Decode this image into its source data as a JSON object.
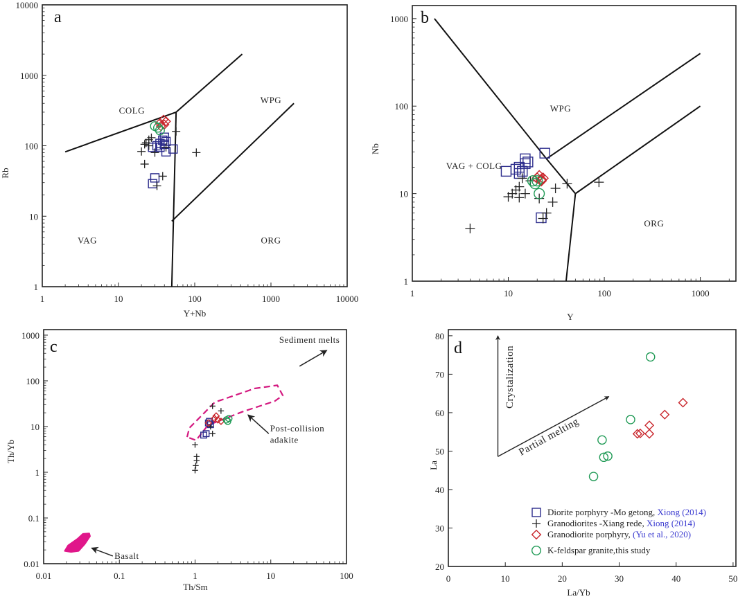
{
  "colors": {
    "square": "#2c2c8c",
    "cross": "#222222",
    "diamond": "#c9262c",
    "circle": "#1f9a55",
    "envelope": "#d3177f",
    "basalt": "#e0168a",
    "citation": "#3b3bd0"
  },
  "chart_data": [
    {
      "panel": "a",
      "type": "scatter",
      "xscale": "log",
      "yscale": "log",
      "xlabel": "Y+Nb",
      "ylabel": "Rb",
      "xlim": [
        1,
        10000
      ],
      "ylim": [
        1,
        10000
      ],
      "x_ticks": [
        "1",
        "10",
        "100",
        "1000",
        "10000"
      ],
      "y_ticks": [
        "1",
        "10",
        "100",
        "1000",
        "10000"
      ],
      "field_lines": [
        [
          [
            2,
            82
          ],
          [
            57,
            300
          ],
          [
            420,
            2000
          ]
        ],
        [
          [
            57,
            300
          ],
          [
            50,
            1
          ]
        ],
        [
          [
            50,
            8.5
          ],
          [
            2000,
            400
          ]
        ]
      ],
      "field_labels": [
        {
          "text": "COLG",
          "x": 15,
          "y": 320
        },
        {
          "text": "WPG",
          "x": 1000,
          "y": 450
        },
        {
          "text": "VAG",
          "x": 3.9,
          "y": 4.6
        },
        {
          "text": "ORG",
          "x": 1000,
          "y": 4.6
        }
      ],
      "series": [
        {
          "name": "Diorite porphyry",
          "marker": "square",
          "points": [
            [
              28,
              29
            ],
            [
              30,
              35
            ],
            [
              28,
              95
            ],
            [
              32,
              100
            ],
            [
              35,
              108
            ],
            [
              38,
              120
            ],
            [
              40,
              132
            ],
            [
              42,
              115
            ],
            [
              42,
              82
            ],
            [
              52,
              90
            ],
            [
              35,
              95
            ],
            [
              40,
              105
            ]
          ]
        },
        {
          "name": "Granodiorites",
          "marker": "cross",
          "points": [
            [
              20,
              83
            ],
            [
              22,
              55
            ],
            [
              23,
              110
            ],
            [
              25,
              122
            ],
            [
              27,
              130
            ],
            [
              25,
              100
            ],
            [
              30,
              80
            ],
            [
              32,
              27
            ],
            [
              38,
              37
            ],
            [
              105,
              80
            ],
            [
              57,
              160
            ],
            [
              42,
              95
            ],
            [
              22,
              105
            ]
          ]
        },
        {
          "name": "Granodiorite porphyry",
          "marker": "diamond",
          "points": [
            [
              35,
              210
            ],
            [
              39,
              235
            ],
            [
              40,
              200
            ],
            [
              42,
              222
            ],
            [
              36,
              190
            ]
          ]
        },
        {
          "name": "K-feldspar granite",
          "marker": "circle",
          "points": [
            [
              30,
              190
            ],
            [
              33,
              180
            ],
            [
              35,
              165
            ]
          ]
        }
      ]
    },
    {
      "panel": "b",
      "type": "scatter",
      "xscale": "log",
      "yscale": "log",
      "xlabel": "Y",
      "ylabel": "Nb",
      "xlim": [
        1,
        2350
      ],
      "ylim": [
        1,
        1410
      ],
      "x_ticks": [
        "1",
        "10",
        "100",
        "1000"
      ],
      "y_ticks": [
        "1",
        "10",
        "100",
        "1000"
      ],
      "field_lines": [
        [
          [
            1.7,
            1000
          ],
          [
            25,
            25
          ],
          [
            50,
            10
          ]
        ],
        [
          [
            25,
            25
          ],
          [
            1000,
            400
          ]
        ],
        [
          [
            50,
            10
          ],
          [
            1000,
            100
          ]
        ],
        [
          [
            50,
            10
          ],
          [
            40,
            1
          ]
        ]
      ],
      "field_labels": [
        {
          "text": "WPG",
          "x": 35,
          "y": 95
        },
        {
          "text": "VAG + COLG",
          "x": 4.4,
          "y": 21
        },
        {
          "text": "ORG",
          "x": 330,
          "y": 4.6
        }
      ],
      "series": [
        {
          "name": "Diorite porphyry",
          "marker": "square",
          "points": [
            [
              9.5,
              18
            ],
            [
              12,
              19
            ],
            [
              13,
              17
            ],
            [
              13,
              20
            ],
            [
              15,
              25
            ],
            [
              16,
              23
            ],
            [
              15,
              22
            ],
            [
              22,
              5.3
            ],
            [
              24,
              29
            ],
            [
              14,
              18
            ]
          ]
        },
        {
          "name": "Granodiorites",
          "marker": "cross",
          "points": [
            [
              4,
              4
            ],
            [
              10,
              9.2
            ],
            [
              11,
              10
            ],
            [
              12,
              11
            ],
            [
              13,
              9
            ],
            [
              13,
              12
            ],
            [
              15,
              10
            ],
            [
              14,
              15
            ],
            [
              21,
              8.8
            ],
            [
              17,
              14
            ],
            [
              23,
              5.2
            ],
            [
              25,
              6
            ],
            [
              31,
              11.5
            ],
            [
              29,
              8
            ],
            [
              41,
              13
            ],
            [
              88,
              13.5
            ]
          ]
        },
        {
          "name": "Granodiorite porphyry",
          "marker": "diamond",
          "points": [
            [
              20,
              15
            ],
            [
              21,
              16
            ],
            [
              22,
              14.5
            ],
            [
              23,
              15
            ],
            [
              22,
              14
            ]
          ]
        },
        {
          "name": "K-feldspar granite",
          "marker": "circle",
          "points": [
            [
              18,
              14
            ],
            [
              19,
              13
            ],
            [
              21,
              10
            ],
            [
              20,
              14
            ]
          ]
        }
      ]
    },
    {
      "panel": "c",
      "type": "scatter",
      "xscale": "log",
      "yscale": "log",
      "xlabel": "Th/Sm",
      "ylabel": "Th/Yb",
      "xlim": [
        0.01,
        100
      ],
      "ylim": [
        0.01,
        1320
      ],
      "x_ticks": [
        "0.01",
        "0.1",
        "1",
        "10",
        "100"
      ],
      "y_ticks": [
        "0.01",
        "0.1",
        "1",
        "10",
        "100",
        "1000"
      ],
      "envelope_name": "Post-collision adakite",
      "envelope": [
        [
          0.785,
          5.9
        ],
        [
          0.84,
          9.3
        ],
        [
          1.82,
          34
        ],
        [
          6.1,
          68
        ],
        [
          12.2,
          80
        ],
        [
          14.4,
          48
        ],
        [
          11.3,
          36
        ],
        [
          4.2,
          21
        ],
        [
          1.48,
          10.7
        ],
        [
          1.03,
          5
        ]
      ],
      "basalt_field": [
        [
          0.019,
          0.019
        ],
        [
          0.021,
          0.025
        ],
        [
          0.028,
          0.035
        ],
        [
          0.033,
          0.045
        ],
        [
          0.04,
          0.046
        ],
        [
          0.041,
          0.04
        ],
        [
          0.035,
          0.027
        ],
        [
          0.029,
          0.019
        ],
        [
          0.023,
          0.018
        ]
      ],
      "annotations": [
        {
          "text": "Sediment melts",
          "x": 12.9,
          "y": 680
        },
        {
          "text": "Post-collision",
          "x": 9.8,
          "y": 7.8
        },
        {
          "text": "adakite",
          "x": 9.8,
          "y": 4.4
        },
        {
          "text": "Basalt",
          "x": 0.086,
          "y": 0.0128
        }
      ],
      "arrows": [
        {
          "from": [
            24,
            209
          ],
          "to": [
            55,
            465
          ]
        },
        {
          "from": [
            9.4,
            7
          ],
          "to": [
            5,
            18
          ]
        },
        {
          "from": [
            0.082,
            0.0147
          ],
          "to": [
            0.043,
            0.022
          ]
        }
      ],
      "series": [
        {
          "name": "Diorite porphyry",
          "marker": "square",
          "points": [
            [
              1.3,
              6.5
            ],
            [
              1.4,
              7
            ],
            [
              1.5,
              12
            ],
            [
              1.6,
              11
            ],
            [
              1.55,
              13
            ]
          ]
        },
        {
          "name": "Granodiorites",
          "marker": "cross",
          "points": [
            [
              1,
              1.1
            ],
            [
              1.02,
              1.4
            ],
            [
              1.05,
              1.8
            ],
            [
              1.05,
              2.2
            ],
            [
              1,
              4
            ],
            [
              1.7,
              28
            ],
            [
              2.2,
              22
            ],
            [
              1.6,
              10
            ],
            [
              1.7,
              7
            ]
          ]
        },
        {
          "name": "Granodiorite porphyry",
          "marker": "diamond",
          "points": [
            [
              1.5,
              12
            ],
            [
              1.8,
              15
            ],
            [
              2,
              14
            ],
            [
              2.2,
              13
            ],
            [
              1.9,
              17
            ]
          ]
        },
        {
          "name": "K-feldspar granite",
          "marker": "circle",
          "points": [
            [
              2.6,
              14
            ],
            [
              2.8,
              15
            ],
            [
              2.7,
              13
            ]
          ]
        }
      ]
    },
    {
      "panel": "d",
      "type": "scatter",
      "xscale": "linear",
      "yscale": "linear",
      "xlabel": "La/Yb",
      "ylabel": "La",
      "xlim": [
        0,
        50.5
      ],
      "ylim": [
        20,
        81.6
      ],
      "x_ticks": [
        "0",
        "10",
        "20",
        "30",
        "40",
        "50"
      ],
      "y_ticks": [
        "20",
        "30",
        "40",
        "50",
        "60",
        "70",
        "80"
      ],
      "annotations": [
        {
          "text": "Crystalization"
        },
        {
          "text": "Partial melting"
        }
      ],
      "arrows": [
        {
          "from": [
            8.7,
            48.6
          ],
          "to": [
            8.7,
            80
          ]
        },
        {
          "from": [
            8.7,
            48.6
          ],
          "to": [
            28.2,
            64.2
          ]
        }
      ],
      "legend": [
        {
          "marker": "square",
          "label": "Diorite porphyry -Mo getong, ",
          "citation": "Xiong (2014)"
        },
        {
          "marker": "cross",
          "label": "Granodiorites -Xiang rede, ",
          "citation": "Xiong (2014)"
        },
        {
          "marker": "diamond",
          "label": "Granodiorite porphyry, ",
          "citation": "(Yu et al., 2020)"
        },
        {
          "marker": "circle",
          "label": "K-feldspar granite,this study",
          "citation": ""
        }
      ],
      "legend_position": "bottom-right",
      "series": [
        {
          "name": "Granodiorite porphyry",
          "marker": "diamond",
          "points": [
            [
              41.2,
              62.6
            ],
            [
              38,
              59.5
            ],
            [
              35.3,
              56.7
            ],
            [
              33.2,
              54.5
            ],
            [
              33.7,
              54.6
            ],
            [
              35.3,
              54.5
            ]
          ]
        },
        {
          "name": "K-feldspar granite",
          "marker": "circle",
          "points": [
            [
              35.5,
              74.5
            ],
            [
              32,
              58.2
            ],
            [
              27,
              52.9
            ],
            [
              27.3,
              48.4
            ],
            [
              28,
              48.7
            ],
            [
              25.5,
              43.4
            ]
          ]
        }
      ]
    }
  ]
}
